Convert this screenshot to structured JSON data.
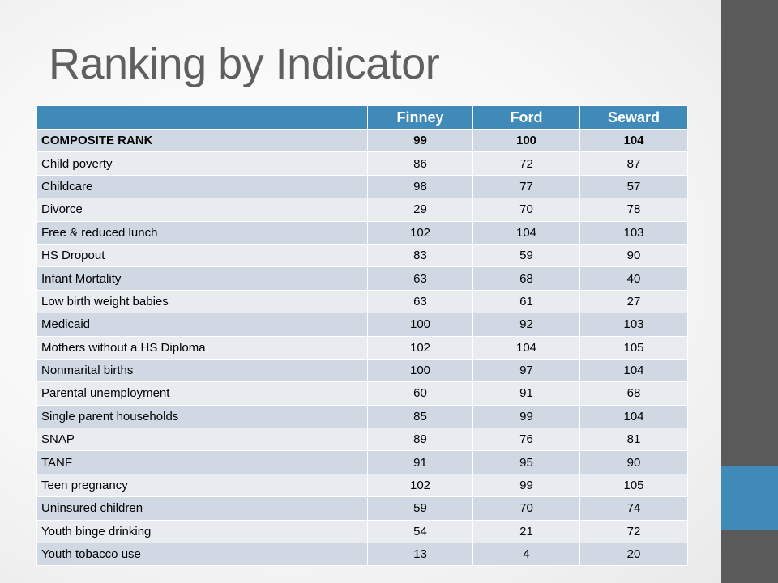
{
  "slide": {
    "title": "Ranking by Indicator"
  },
  "table": {
    "columns": [
      "",
      "Finney",
      "Ford",
      "Seward"
    ],
    "rows": [
      {
        "label": "COMPOSITE RANK",
        "finney": "99",
        "ford": "100",
        "seward": "104"
      },
      {
        "label": "Child poverty",
        "finney": "86",
        "ford": "72",
        "seward": "87"
      },
      {
        "label": "Childcare",
        "finney": "98",
        "ford": "77",
        "seward": "57"
      },
      {
        "label": "Divorce",
        "finney": "29",
        "ford": "70",
        "seward": "78"
      },
      {
        "label": "Free & reduced lunch",
        "finney": "102",
        "ford": "104",
        "seward": "103"
      },
      {
        "label": "HS Dropout",
        "finney": "83",
        "ford": "59",
        "seward": "90"
      },
      {
        "label": "Infant Mortality",
        "finney": "63",
        "ford": "68",
        "seward": "40"
      },
      {
        "label": "Low birth weight babies",
        "finney": "63",
        "ford": "61",
        "seward": "27"
      },
      {
        "label": "Medicaid",
        "finney": "100",
        "ford": "92",
        "seward": "103"
      },
      {
        "label": "Mothers without a HS Diploma",
        "finney": "102",
        "ford": "104",
        "seward": "105"
      },
      {
        "label": "Nonmarital births",
        "finney": "100",
        "ford": "97",
        "seward": "104"
      },
      {
        "label": "Parental unemployment",
        "finney": "60",
        "ford": "91",
        "seward": "68"
      },
      {
        "label": "Single parent households",
        "finney": "85",
        "ford": "99",
        "seward": "104"
      },
      {
        "label": "SNAP",
        "finney": "89",
        "ford": "76",
        "seward": "81"
      },
      {
        "label": "TANF",
        "finney": "91",
        "ford": "95",
        "seward": "90"
      },
      {
        "label": "Teen pregnancy",
        "finney": "102",
        "ford": "99",
        "seward": "105"
      },
      {
        "label": "Uninsured children",
        "finney": "59",
        "ford": "70",
        "seward": "74"
      },
      {
        "label": "Youth binge drinking",
        "finney": "54",
        "ford": "21",
        "seward": "72"
      },
      {
        "label": "Youth tobacco use",
        "finney": "13",
        "ford": "4",
        "seward": "20"
      }
    ]
  },
  "colors": {
    "header_bg": "#3f8ab8",
    "row_dark": "#cfd8e3",
    "row_light": "#e8ecf1",
    "side_bar": "#5a5a5a",
    "side_accent": "#3f8ab8",
    "title_text": "#5f5f5f"
  }
}
